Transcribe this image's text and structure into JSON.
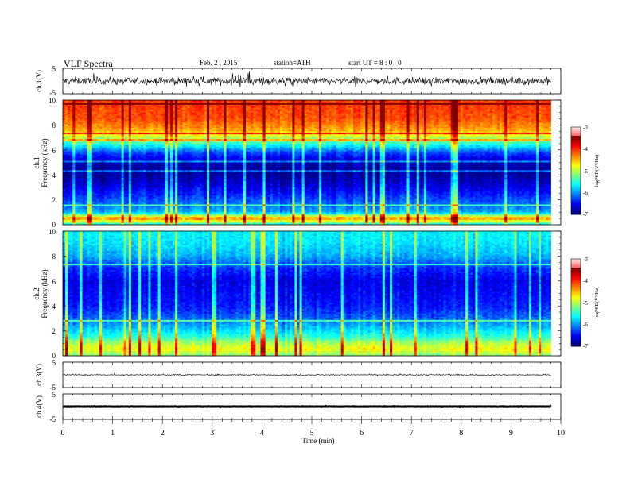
{
  "header": {
    "title": "VLF  Spectra",
    "date": "Feb. 2  , 2015",
    "station": "station=ATH",
    "start_time": "start  UT  =   8  : 0  : 0"
  },
  "xaxis": {
    "label": "Time  (min)",
    "ticks": [
      "0",
      "1",
      "2",
      "3",
      "4",
      "5",
      "6",
      "7",
      "8",
      "9",
      "10"
    ]
  },
  "panels": {
    "ch1_wave": {
      "label": "ch.1(V)",
      "ticks": [
        "5",
        "-5"
      ]
    },
    "ch1_spec": {
      "label_ch": "ch.1",
      "label_freq": "Frequency  (kHz)",
      "ticks": [
        "10",
        "8",
        "6",
        "4",
        "2",
        "0"
      ]
    },
    "ch2_spec": {
      "label_ch": "ch.2",
      "label_freq": "Frequency  (kHz)",
      "ticks": [
        "10",
        "8",
        "6",
        "4",
        "2",
        "0"
      ]
    },
    "ch3_wave": {
      "label": "ch.3(V)",
      "ticks": [
        "5",
        "-5"
      ]
    },
    "ch4_wave": {
      "label": "ch.4(V)",
      "ticks": [
        "5",
        "-5"
      ]
    }
  },
  "colorbar": {
    "label": "logPSD(V²/Hz)",
    "ticks": [
      "-3",
      "-4",
      "-5",
      "-6",
      "-7"
    ]
  },
  "chart_data": [
    {
      "type": "line",
      "name": "ch.1(V)",
      "ylim": [
        -5,
        5
      ],
      "xlim": [
        0,
        10
      ],
      "x_extent_min": 9.8,
      "mean": 0,
      "noise_amplitude": 2.5
    },
    {
      "type": "heatmap",
      "name": "ch.1",
      "xlim": [
        0,
        10
      ],
      "ylim": [
        0,
        10
      ],
      "zlim": [
        -7,
        -3
      ],
      "x_extent_min": 9.8,
      "profile_logPSD": [
        {
          "freq_khz": 0.0,
          "logPSD": -5.5
        },
        {
          "freq_khz": 0.5,
          "logPSD": -4.0
        },
        {
          "freq_khz": 1.0,
          "logPSD": -5.8
        },
        {
          "freq_khz": 2.0,
          "logPSD": -6.2
        },
        {
          "freq_khz": 3.0,
          "logPSD": -6.6
        },
        {
          "freq_khz": 4.0,
          "logPSD": -6.9
        },
        {
          "freq_khz": 5.0,
          "logPSD": -6.8
        },
        {
          "freq_khz": 5.8,
          "logPSD": -6.2
        },
        {
          "freq_khz": 6.5,
          "logPSD": -5.3
        },
        {
          "freq_khz": 7.5,
          "logPSD": -4.2
        },
        {
          "freq_khz": 8.5,
          "logPSD": -3.8
        },
        {
          "freq_khz": 10.0,
          "logPSD": -3.7
        }
      ]
    },
    {
      "type": "heatmap",
      "name": "ch.2",
      "xlim": [
        0,
        10
      ],
      "ylim": [
        0,
        10
      ],
      "zlim": [
        -7,
        -3
      ],
      "x_extent_min": 9.8,
      "profile_logPSD": [
        {
          "freq_khz": 0.0,
          "logPSD": -5.0
        },
        {
          "freq_khz": 0.5,
          "logPSD": -4.5
        },
        {
          "freq_khz": 1.0,
          "logPSD": -4.8
        },
        {
          "freq_khz": 1.5,
          "logPSD": -5.3
        },
        {
          "freq_khz": 2.0,
          "logPSD": -5.6
        },
        {
          "freq_khz": 3.0,
          "logPSD": -6.1
        },
        {
          "freq_khz": 4.0,
          "logPSD": -6.4
        },
        {
          "freq_khz": 5.0,
          "logPSD": -6.5
        },
        {
          "freq_khz": 6.0,
          "logPSD": -6.6
        },
        {
          "freq_khz": 7.0,
          "logPSD": -6.3
        },
        {
          "freq_khz": 8.0,
          "logPSD": -5.8
        },
        {
          "freq_khz": 9.0,
          "logPSD": -5.6
        },
        {
          "freq_khz": 10.0,
          "logPSD": -5.5
        }
      ]
    },
    {
      "type": "line",
      "name": "ch.3(V)",
      "ylim": [
        -5,
        5
      ],
      "xlim": [
        0,
        10
      ],
      "x_extent_min": 9.8,
      "mean": 0,
      "noise_amplitude": 0.35
    },
    {
      "type": "line",
      "name": "ch.4(V)",
      "ylim": [
        -5,
        5
      ],
      "xlim": [
        0,
        10
      ],
      "x_extent_min": 9.8,
      "mean": 0,
      "noise_amplitude": 0.12
    }
  ]
}
